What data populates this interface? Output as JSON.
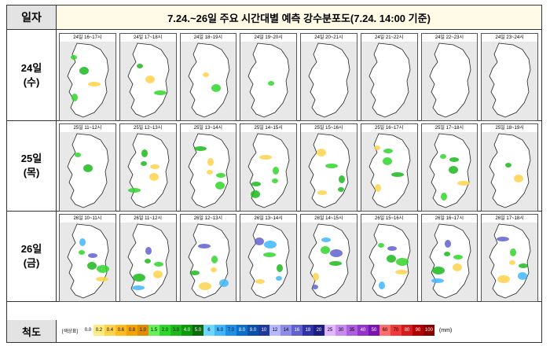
{
  "header": {
    "left": "일자",
    "title": "7.24.~26일 주요 시간대별 예측 강수분포도(7.24. 14:00 기준)"
  },
  "rows": [
    {
      "day": "24일",
      "weekday": "(수)",
      "panels": [
        {
          "time": "24일 16~17시"
        },
        {
          "time": "24일 17~18시"
        },
        {
          "time": "24일 18~19시"
        },
        {
          "time": "24일 19~20시"
        },
        {
          "time": "24일 20~21시"
        },
        {
          "time": "24일 21~22시"
        },
        {
          "time": "24일 22~23시"
        },
        {
          "time": "24일 23~24시"
        }
      ]
    },
    {
      "day": "25일",
      "weekday": "(목)",
      "panels": [
        {
          "time": "25일 11~12시"
        },
        {
          "time": "25일 12~13시"
        },
        {
          "time": "25일 13~14시"
        },
        {
          "time": "25일 14~15시"
        },
        {
          "time": "25일 15~16시"
        },
        {
          "time": "25일 16~17시"
        },
        {
          "time": "25일 17~18시"
        },
        {
          "time": "25일 18~19시"
        }
      ]
    },
    {
      "day": "26일",
      "weekday": "(금)",
      "panels": [
        {
          "time": "26일 10~11시"
        },
        {
          "time": "26일 11~12시"
        },
        {
          "time": "26일 12~13시"
        },
        {
          "time": "26일 13~14시"
        },
        {
          "time": "26일 14~15시"
        },
        {
          "time": "26일 15~16시"
        },
        {
          "time": "26일 16~17시"
        },
        {
          "time": "26일 17~18시"
        }
      ]
    }
  ],
  "scale": {
    "label": "척도",
    "legend_title": "[색상표]",
    "unit": "(mm)",
    "bins": [
      {
        "v": "0.0",
        "c": "#ffffff"
      },
      {
        "v": "0.2",
        "c": "#ffec80"
      },
      {
        "v": "0.4",
        "c": "#ffd24a"
      },
      {
        "v": "0.6",
        "c": "#ffbb1e"
      },
      {
        "v": "0.8",
        "c": "#f5a300"
      },
      {
        "v": "1.0",
        "c": "#e08c00"
      },
      {
        "v": "1.5",
        "c": "#69ef5b"
      },
      {
        "v": "2.0",
        "c": "#2fd62a"
      },
      {
        "v": "3.0",
        "c": "#1cb81c"
      },
      {
        "v": "4.0",
        "c": "#0a9a0a"
      },
      {
        "v": "5.0",
        "c": "#0c6a0c"
      },
      {
        "v": "6",
        "c": "#6ed6ff"
      },
      {
        "v": "6.0",
        "c": "#3fb6ff"
      },
      {
        "v": "7.0",
        "c": "#1d8fe6"
      },
      {
        "v": "8.0",
        "c": "#0b6ec8"
      },
      {
        "v": "9.0",
        "c": "#0a4fa8"
      },
      {
        "v": "10",
        "c": "#1e3a9a"
      },
      {
        "v": "12",
        "c": "#b8b8ff"
      },
      {
        "v": "14",
        "c": "#8d8de8"
      },
      {
        "v": "16",
        "c": "#6060d0"
      },
      {
        "v": "18",
        "c": "#3232a8"
      },
      {
        "v": "20",
        "c": "#1e1e80"
      },
      {
        "v": "25",
        "c": "#e0b6ff"
      },
      {
        "v": "30",
        "c": "#c88cf0"
      },
      {
        "v": "35",
        "c": "#ad5fe0"
      },
      {
        "v": "40",
        "c": "#9433cc"
      },
      {
        "v": "50",
        "c": "#7a14b0"
      },
      {
        "v": "60",
        "c": "#ff6c6c"
      },
      {
        "v": "70",
        "c": "#f03a3a"
      },
      {
        "v": "80",
        "c": "#d61a1a"
      },
      {
        "v": "90",
        "c": "#b40000"
      },
      {
        "v": "100",
        "c": "#8a0000"
      }
    ]
  }
}
